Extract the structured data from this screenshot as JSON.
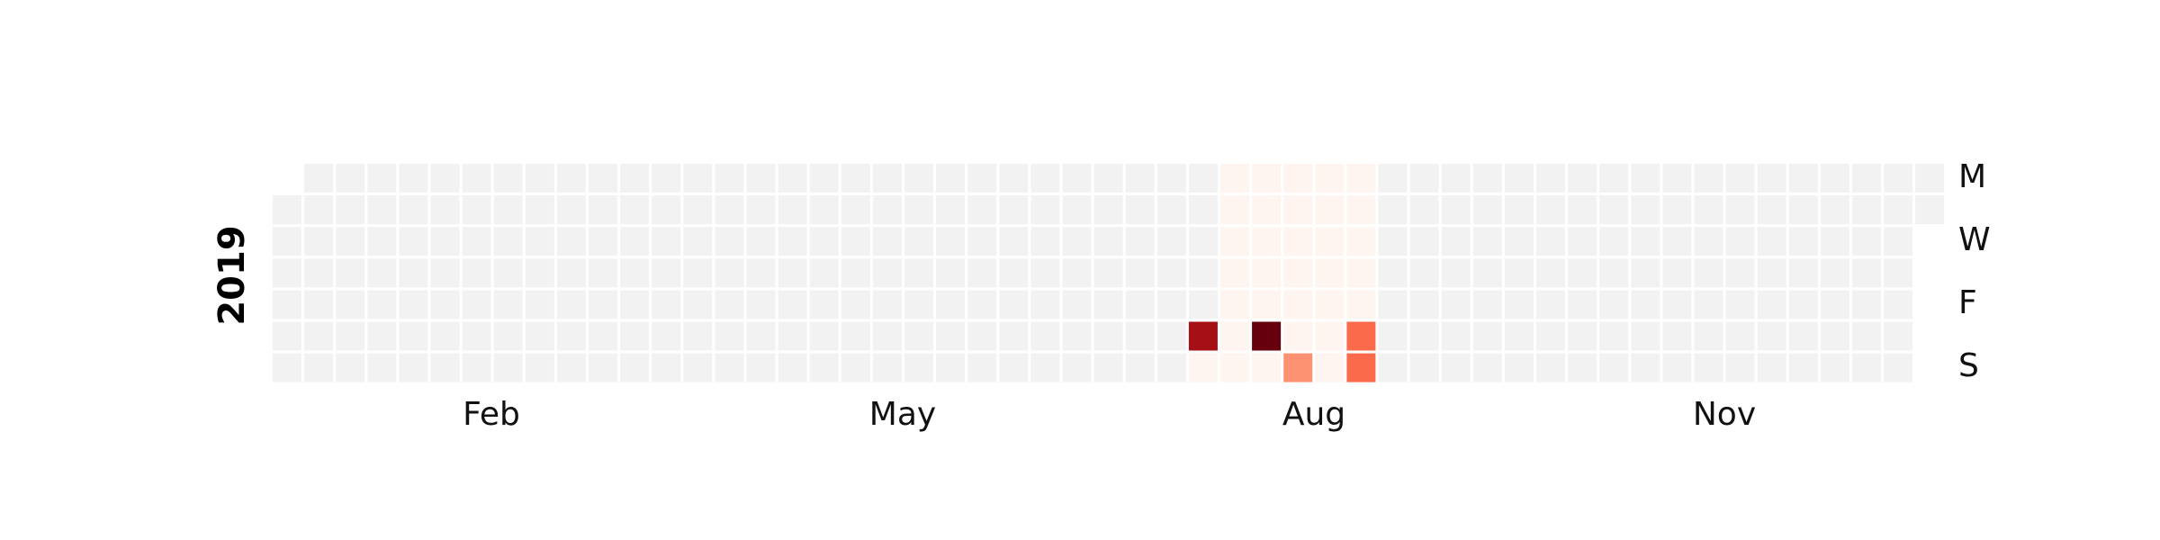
{
  "chart_data": {
    "type": "heatmap",
    "title": "",
    "year": "2019",
    "x_tick_labels": [
      "Feb",
      "May",
      "Aug",
      "Nov"
    ],
    "y_tick_labels": [
      "M",
      "W",
      "F",
      "S"
    ],
    "empty_color": "#f2f2f2",
    "colormap": "Reds",
    "colorscale": [
      "#fff5f0",
      "#fee0d2",
      "#fcbba1",
      "#fc9272",
      "#fb6a4a",
      "#ef3b2c",
      "#cb181d",
      "#a50f15",
      "#67000d"
    ],
    "value_range": [
      0,
      1
    ],
    "nonzero_days": [
      {
        "date": "2019-07-27",
        "value": 0.85
      },
      {
        "date": "2019-07-28",
        "value": 0.05
      },
      {
        "date": "2019-07-29",
        "value": 0.05
      },
      {
        "date": "2019-07-30",
        "value": 0.05
      },
      {
        "date": "2019-07-31",
        "value": 0.05
      },
      {
        "date": "2019-08-01",
        "value": 0.05
      },
      {
        "date": "2019-08-02",
        "value": 0.05
      },
      {
        "date": "2019-08-03",
        "value": 0.05
      },
      {
        "date": "2019-08-04",
        "value": 0.05
      },
      {
        "date": "2019-08-05",
        "value": 0.05
      },
      {
        "date": "2019-08-06",
        "value": 0.05
      },
      {
        "date": "2019-08-07",
        "value": 0.05
      },
      {
        "date": "2019-08-08",
        "value": 0.05
      },
      {
        "date": "2019-08-09",
        "value": 0.05
      },
      {
        "date": "2019-08-10",
        "value": 1.0
      },
      {
        "date": "2019-08-11",
        "value": 0.05
      },
      {
        "date": "2019-08-12",
        "value": 0.05
      },
      {
        "date": "2019-08-13",
        "value": 0.05
      },
      {
        "date": "2019-08-14",
        "value": 0.05
      },
      {
        "date": "2019-08-15",
        "value": 0.05
      },
      {
        "date": "2019-08-16",
        "value": 0.05
      },
      {
        "date": "2019-08-17",
        "value": 0.05
      },
      {
        "date": "2019-08-18",
        "value": 0.35
      },
      {
        "date": "2019-08-19",
        "value": 0.05
      },
      {
        "date": "2019-08-20",
        "value": 0.05
      },
      {
        "date": "2019-08-21",
        "value": 0.05
      },
      {
        "date": "2019-08-22",
        "value": 0.05
      },
      {
        "date": "2019-08-23",
        "value": 0.05
      },
      {
        "date": "2019-08-24",
        "value": 0.05
      },
      {
        "date": "2019-08-25",
        "value": 0.05
      },
      {
        "date": "2019-08-26",
        "value": 0.05
      },
      {
        "date": "2019-08-27",
        "value": 0.05
      },
      {
        "date": "2019-08-28",
        "value": 0.05
      },
      {
        "date": "2019-08-29",
        "value": 0.05
      },
      {
        "date": "2019-08-30",
        "value": 0.05
      },
      {
        "date": "2019-08-31",
        "value": 0.55
      },
      {
        "date": "2019-09-01",
        "value": 0.5
      }
    ]
  }
}
